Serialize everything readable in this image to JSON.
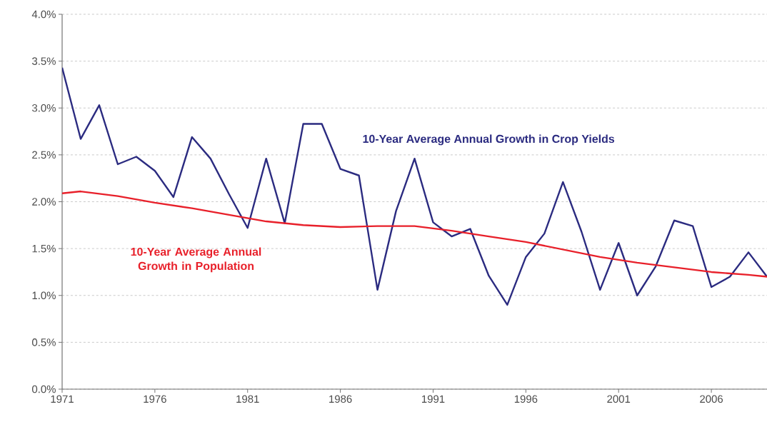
{
  "chart_data": {
    "type": "line",
    "x": [
      1971,
      1972,
      1973,
      1974,
      1975,
      1976,
      1977,
      1978,
      1979,
      1980,
      1981,
      1982,
      1983,
      1984,
      1985,
      1986,
      1987,
      1988,
      1989,
      1990,
      1991,
      1992,
      1993,
      1994,
      1995,
      1996,
      1997,
      1998,
      1999,
      2000,
      2001,
      2002,
      2003,
      2004,
      2005,
      2006,
      2007,
      2008,
      2009
    ],
    "series": [
      {
        "name": "10-Year Average Annual Growth in Crop Yields",
        "color": "#2b2b80",
        "values": [
          3.43,
          2.67,
          3.03,
          2.4,
          2.48,
          2.33,
          2.05,
          2.69,
          2.46,
          2.08,
          1.72,
          2.46,
          1.77,
          2.83,
          2.83,
          2.35,
          2.28,
          1.06,
          1.9,
          2.46,
          1.78,
          1.63,
          1.71,
          1.21,
          0.9,
          1.41,
          1.66,
          2.21,
          1.68,
          1.06,
          1.56,
          1.0,
          1.31,
          1.8,
          1.74,
          1.09,
          1.2,
          1.46,
          1.2
        ]
      },
      {
        "name": "10-Year Average Annual Growth in Population",
        "color": "#e8202a",
        "x": [
          1971,
          1972,
          1974,
          1976,
          1978,
          1980,
          1982,
          1984,
          1986,
          1988,
          1990,
          1992,
          1994,
          1996,
          1998,
          2000,
          2002,
          2004,
          2006,
          2008,
          2009
        ],
        "values": [
          2.09,
          2.11,
          2.06,
          1.99,
          1.93,
          1.86,
          1.79,
          1.75,
          1.73,
          1.74,
          1.74,
          1.69,
          1.63,
          1.57,
          1.49,
          1.41,
          1.35,
          1.3,
          1.25,
          1.22,
          1.2
        ]
      }
    ],
    "xlim": [
      1971,
      2009
    ],
    "xticks": [
      1971,
      1976,
      1981,
      1986,
      1991,
      1996,
      2001,
      2006
    ],
    "ylim": [
      0,
      4
    ],
    "yticks": [
      {
        "value": 0,
        "label": "0.0%"
      },
      {
        "value": 0.5,
        "label": "0.5%"
      },
      {
        "value": 1,
        "label": "1.0%"
      },
      {
        "value": 1.5,
        "label": "1.5%"
      },
      {
        "value": 2,
        "label": "2.0%"
      },
      {
        "value": 2.5,
        "label": "2.5%"
      },
      {
        "value": 3,
        "label": "3.0%"
      },
      {
        "value": 3.5,
        "label": "3.5%"
      },
      {
        "value": 4,
        "label": "4.0%"
      }
    ],
    "grid": "y",
    "legend": false,
    "marker": "none",
    "line_style": "solid"
  }
}
